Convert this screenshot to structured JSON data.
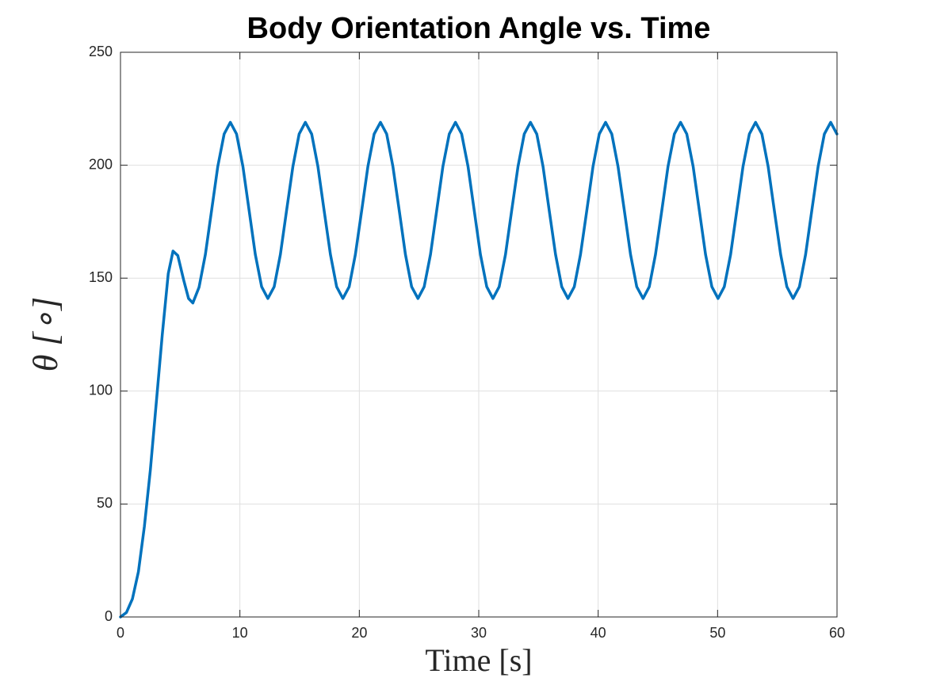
{
  "chart_data": {
    "type": "line",
    "title": "Body Orientation Angle vs. Time",
    "x_label": "Time [s]",
    "y_label": "θ [∘]",
    "xlim": [
      0,
      60
    ],
    "xticks": [
      0,
      10,
      20,
      30,
      40,
      50,
      60
    ],
    "ylim": [
      0,
      250
    ],
    "yticks": [
      0,
      50,
      100,
      150,
      200,
      250
    ],
    "grid": true,
    "series": [
      {
        "color": "#0072BD",
        "x": [
          0,
          0.5,
          1,
          1.5,
          2,
          2.5,
          3,
          3.5,
          4,
          4.4,
          4.8,
          5.3,
          5.7,
          6.06,
          6.58,
          7.11,
          7.63,
          8.15,
          8.68,
          9.2,
          9.72,
          10.25,
          10.77,
          11.29,
          11.82,
          12.34,
          12.87,
          13.39,
          13.91,
          14.44,
          14.96,
          15.48,
          16.01,
          16.53,
          17.05,
          17.58,
          18.1,
          18.62,
          19.15,
          19.67,
          20.2,
          20.72,
          21.24,
          21.77,
          22.29,
          22.81,
          23.34,
          23.86,
          24.38,
          24.91,
          25.43,
          25.96,
          26.48,
          27.0,
          27.53,
          28.05,
          28.57,
          29.1,
          29.62,
          30.14,
          30.67,
          31.19,
          31.71,
          32.24,
          32.76,
          33.29,
          33.81,
          34.33,
          34.86,
          35.38,
          35.9,
          36.43,
          36.95,
          37.47,
          38.0,
          38.52,
          39.05,
          39.57,
          40.09,
          40.62,
          41.14,
          41.66,
          42.19,
          42.71,
          43.23,
          43.76,
          44.28,
          44.8,
          45.33,
          45.85,
          46.38,
          46.9,
          47.42,
          47.95,
          48.47,
          48.99,
          49.52,
          50.04,
          50.56,
          51.09,
          51.61,
          52.13,
          52.66,
          53.18,
          53.71,
          54.23,
          54.75,
          55.28,
          55.8,
          56.32,
          56.85,
          57.37,
          57.89,
          58.42,
          58.94,
          59.47,
          59.99
        ],
        "values": [
          0,
          2,
          8,
          20,
          40,
          65,
          95,
          125,
          152,
          162,
          160,
          149,
          141,
          139,
          146,
          160.5,
          180,
          199.5,
          213.8,
          219,
          213.8,
          199.5,
          180,
          160.5,
          146.2,
          141,
          146.2,
          160.5,
          180,
          199.5,
          213.8,
          219,
          213.8,
          199.5,
          180,
          160.5,
          146.2,
          141,
          146.2,
          160.5,
          180,
          199.5,
          213.8,
          219,
          213.8,
          199.5,
          180,
          160.5,
          146.2,
          141,
          146.2,
          160.5,
          180,
          199.5,
          213.8,
          219,
          213.8,
          199.5,
          180,
          160.5,
          146.2,
          141,
          146.2,
          160.5,
          180,
          199.5,
          213.8,
          219,
          213.8,
          199.5,
          180,
          160.5,
          146.2,
          141,
          146.2,
          160.5,
          180,
          199.5,
          213.8,
          219,
          213.8,
          199.5,
          180,
          160.5,
          146.2,
          141,
          146.2,
          160.5,
          180,
          199.5,
          213.8,
          219,
          213.8,
          199.5,
          180,
          160.5,
          146.2,
          141,
          146.2,
          160.5,
          180,
          199.5,
          213.8,
          219,
          213.8,
          199.5,
          180,
          160.5,
          146.2,
          141,
          146.2,
          160.5,
          180,
          199.5,
          213.8,
          219,
          213.8
        ]
      }
    ]
  }
}
